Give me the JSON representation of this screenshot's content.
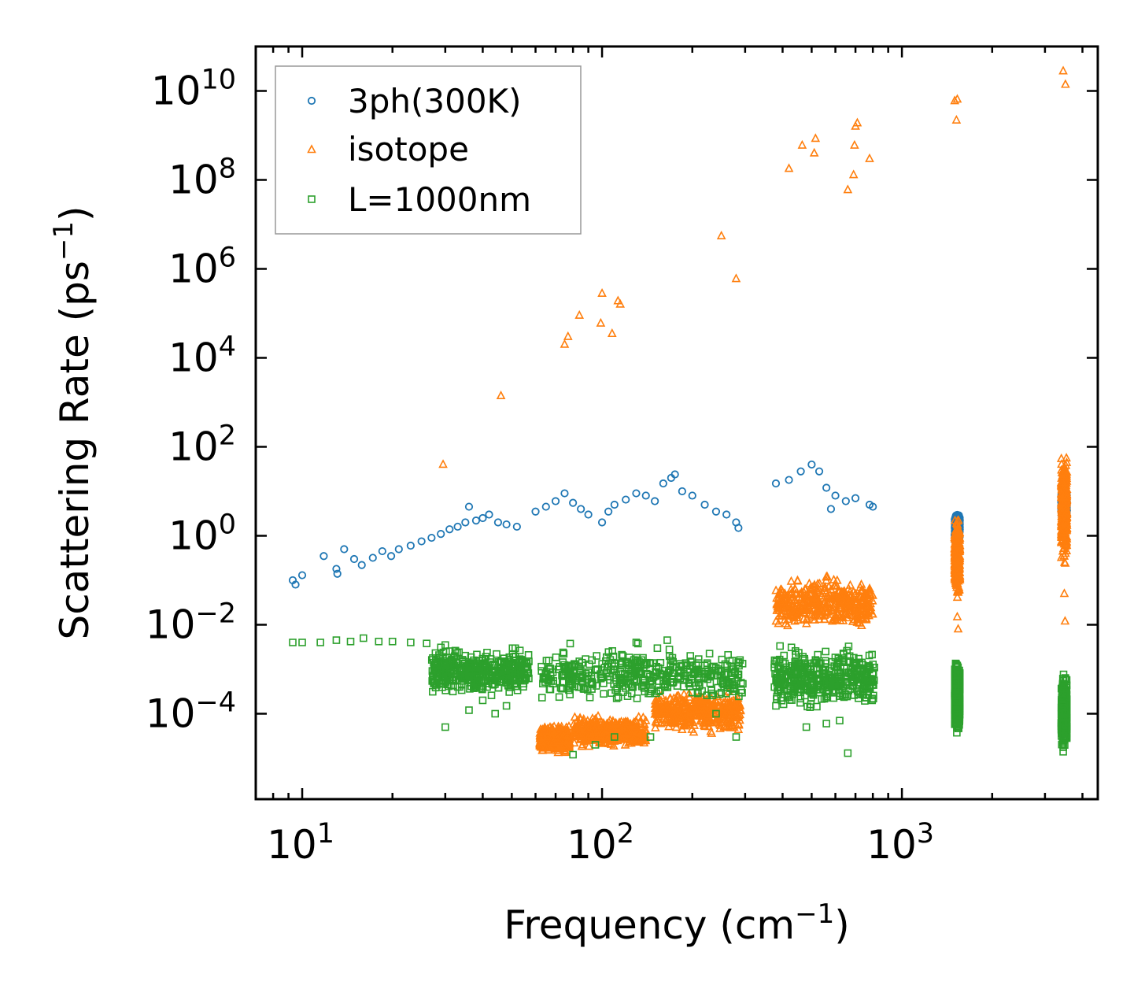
{
  "chart_data": {
    "type": "scatter",
    "title": "",
    "xlabel": "Frequency (cm⁻¹)",
    "ylabel": "Scattering Rate (ps⁻¹)",
    "xlabel_parts": {
      "main": "Frequency (cm",
      "sup": "−1",
      "close": ")"
    },
    "ylabel_parts": {
      "main": "Scattering Rate (ps",
      "sup": "−1",
      "close": ")"
    },
    "xscale": "log",
    "yscale": "log",
    "xlim": [
      7,
      4500
    ],
    "ylim": [
      1.2e-06,
      100000000000
    ],
    "x_ticks": [
      {
        "value": 10,
        "base": "10",
        "exp": "1"
      },
      {
        "value": 100,
        "base": "10",
        "exp": "2"
      },
      {
        "value": 1000,
        "base": "10",
        "exp": "3"
      }
    ],
    "y_ticks": [
      {
        "value": 0.0001,
        "base": "10",
        "exp": "−4"
      },
      {
        "value": 0.01,
        "base": "10",
        "exp": "−2"
      },
      {
        "value": 1,
        "base": "10",
        "exp": "0"
      },
      {
        "value": 100,
        "base": "10",
        "exp": "2"
      },
      {
        "value": 10000,
        "base": "10",
        "exp": "4"
      },
      {
        "value": 1000000,
        "base": "10",
        "exp": "6"
      },
      {
        "value": 100000000,
        "base": "10",
        "exp": "8"
      },
      {
        "value": 10000000000,
        "base": "10",
        "exp": "10"
      }
    ],
    "legend_position": "top-left",
    "grid": false,
    "series": [
      {
        "name": "3ph(300K)",
        "marker": "circle",
        "color": "#1f77b4",
        "points": [
          [
            9.3,
            0.1
          ],
          [
            9.5,
            0.08
          ],
          [
            10,
            0.13
          ],
          [
            11.8,
            0.35
          ],
          [
            13,
            0.18
          ],
          [
            13.1,
            0.14
          ],
          [
            13.8,
            0.5
          ],
          [
            14.9,
            0.3
          ],
          [
            15.8,
            0.22
          ],
          [
            17.2,
            0.32
          ],
          [
            18.5,
            0.45
          ],
          [
            19.8,
            0.35
          ],
          [
            21,
            0.5
          ],
          [
            23,
            0.6
          ],
          [
            25,
            0.75
          ],
          [
            27,
            0.9
          ],
          [
            29,
            1.1
          ],
          [
            31,
            1.4
          ],
          [
            33,
            1.6
          ],
          [
            35,
            2.0
          ],
          [
            36,
            4.5
          ],
          [
            38,
            2.2
          ],
          [
            40,
            2.5
          ],
          [
            42,
            3.0
          ],
          [
            45,
            2.0
          ],
          [
            48,
            1.8
          ],
          [
            52,
            1.6
          ],
          [
            60,
            3.5
          ],
          [
            65,
            4.5
          ],
          [
            70,
            6.0
          ],
          [
            75,
            9.0
          ],
          [
            80,
            5.5
          ],
          [
            85,
            4.0
          ],
          [
            90,
            3.0
          ],
          [
            100,
            2.0
          ],
          [
            105,
            3.5
          ],
          [
            110,
            5.0
          ],
          [
            120,
            6.5
          ],
          [
            130,
            9.0
          ],
          [
            140,
            8.0
          ],
          [
            150,
            6.0
          ],
          [
            160,
            15
          ],
          [
            170,
            20
          ],
          [
            175,
            24
          ],
          [
            185,
            10
          ],
          [
            200,
            8
          ],
          [
            220,
            5
          ],
          [
            240,
            3.5
          ],
          [
            260,
            3.0
          ],
          [
            280,
            2.0
          ],
          [
            285,
            1.5
          ],
          [
            380,
            15
          ],
          [
            420,
            18
          ],
          [
            460,
            28
          ],
          [
            500,
            40
          ],
          [
            530,
            28
          ],
          [
            560,
            12
          ],
          [
            580,
            4
          ],
          [
            600,
            8
          ],
          [
            650,
            6
          ],
          [
            700,
            7
          ],
          [
            780,
            5
          ],
          [
            800,
            4.5
          ]
        ],
        "clusters": [
          {
            "x_min": 1500,
            "x_max": 1560,
            "y_min": 0.6,
            "y_max": 3.5
          },
          {
            "x_min": 3400,
            "x_max": 3550,
            "y_min": 2,
            "y_max": 12
          }
        ]
      },
      {
        "name": "isotope",
        "marker": "triangle",
        "color": "#ff7f0e",
        "points": [
          [
            29.5,
            40
          ],
          [
            46,
            1400
          ],
          [
            75,
            20000
          ],
          [
            77,
            30000
          ],
          [
            84,
            90000
          ],
          [
            99,
            60000
          ],
          [
            100,
            280000
          ],
          [
            108,
            35000
          ],
          [
            113,
            190000
          ],
          [
            115,
            160000
          ],
          [
            250,
            5500000
          ],
          [
            280,
            600000
          ],
          [
            420,
            180000000
          ],
          [
            465,
            600000000
          ],
          [
            510,
            400000000
          ],
          [
            515,
            850000000
          ],
          [
            660,
            60000000
          ],
          [
            690,
            130000000
          ],
          [
            695,
            600000000
          ],
          [
            700,
            1600000000
          ],
          [
            710,
            1900000000
          ],
          [
            780,
            300000000
          ],
          [
            1500,
            6000000000
          ],
          [
            1530,
            6500000000
          ],
          [
            1520,
            2200000000
          ],
          [
            3450,
            28000000000
          ],
          [
            3510,
            14000000000
          ],
          [
            3500,
            0.012
          ],
          [
            3480,
            0.05
          ],
          [
            1540,
            0.008
          ],
          [
            1530,
            0.015
          ]
        ],
        "clusters": [
          {
            "x_min": 380,
            "x_max": 800,
            "y_min": 0.006,
            "y_max": 0.15
          },
          {
            "x_min": 62,
            "x_max": 78,
            "y_min": 1.2e-05,
            "y_max": 6e-05
          },
          {
            "x_min": 80,
            "x_max": 140,
            "y_min": 1.5e-05,
            "y_max": 0.0001
          },
          {
            "x_min": 150,
            "x_max": 290,
            "y_min": 3e-05,
            "y_max": 0.0004
          },
          {
            "x_min": 1500,
            "x_max": 1560,
            "y_min": 0.03,
            "y_max": 3
          },
          {
            "x_min": 3400,
            "x_max": 3550,
            "y_min": 0.2,
            "y_max": 80
          }
        ]
      },
      {
        "name": "L=1000nm",
        "marker": "square",
        "color": "#2ca02c",
        "points": [
          [
            9.3,
            0.004
          ],
          [
            10,
            0.004
          ],
          [
            11.5,
            0.004
          ],
          [
            13,
            0.0045
          ],
          [
            14.5,
            0.0042
          ],
          [
            16,
            0.005
          ],
          [
            18,
            0.0042
          ],
          [
            20,
            0.0042
          ],
          [
            23,
            0.004
          ],
          [
            26,
            0.0038
          ],
          [
            30,
            0.0035
          ],
          [
            30,
            5e-05
          ],
          [
            33,
            0.0004
          ],
          [
            36,
            0.00012
          ],
          [
            40,
            0.0002
          ],
          [
            44,
            0.0001
          ],
          [
            48,
            0.00015
          ],
          [
            80,
            1.2e-05
          ],
          [
            95,
            2e-05
          ],
          [
            110,
            3e-05
          ],
          [
            130,
            0.004
          ],
          [
            145,
            3e-05
          ],
          [
            165,
            0.0045
          ],
          [
            200,
            0.0003
          ],
          [
            240,
            0.0001
          ],
          [
            280,
            3e-05
          ],
          [
            380,
            0.00015
          ],
          [
            480,
            5e-05
          ],
          [
            560,
            6e-05
          ],
          [
            620,
            7e-05
          ],
          [
            660,
            1.3e-05
          ],
          [
            780,
            0.0005
          ]
        ],
        "clusters": [
          {
            "x_min": 27,
            "x_max": 57,
            "y_min": 0.0002,
            "y_max": 0.004
          },
          {
            "x_min": 62,
            "x_max": 295,
            "y_min": 0.00015,
            "y_max": 0.004
          },
          {
            "x_min": 375,
            "x_max": 810,
            "y_min": 0.0001,
            "y_max": 0.004
          },
          {
            "x_min": 1500,
            "x_max": 1560,
            "y_min": 3e-05,
            "y_max": 0.002
          },
          {
            "x_min": 3400,
            "x_max": 3550,
            "y_min": 1.2e-05,
            "y_max": 0.001
          }
        ]
      }
    ]
  }
}
